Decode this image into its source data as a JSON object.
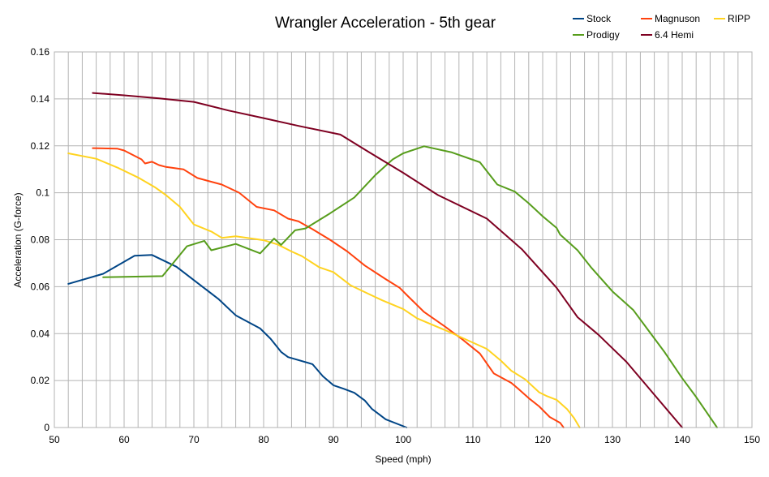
{
  "chart_data": {
    "type": "line",
    "title": "Wrangler Acceleration - 5th gear",
    "xlabel": "Speed (mph)",
    "ylabel": "Acceleration (G-force)",
    "xlim": [
      50,
      150
    ],
    "ylim": [
      0,
      0.16
    ],
    "x_ticks": [
      50,
      60,
      70,
      80,
      90,
      100,
      110,
      120,
      130,
      140,
      150
    ],
    "y_ticks": [
      0,
      0.02,
      0.04,
      0.06,
      0.08,
      0.1,
      0.12,
      0.14,
      0.16
    ],
    "x_tick_labels": [
      "50",
      "60",
      "70",
      "80",
      "90",
      "100",
      "110",
      "120",
      "130",
      "140",
      "150"
    ],
    "y_tick_labels": [
      "0",
      "0.02",
      "0.04",
      "0.06",
      "0.08",
      "0.1",
      "0.12",
      "0.14",
      "0.16"
    ],
    "grid": true,
    "legend_position": "top-right",
    "series": [
      {
        "name": "Stock",
        "color": "#004586",
        "points": [
          [
            52,
            0.0612
          ],
          [
            57,
            0.0655
          ],
          [
            61.5,
            0.0732
          ],
          [
            64,
            0.0735
          ],
          [
            67.5,
            0.0685
          ],
          [
            71,
            0.0605
          ],
          [
            73.5,
            0.0548
          ],
          [
            76,
            0.0478
          ],
          [
            79.5,
            0.0422
          ],
          [
            81,
            0.0378
          ],
          [
            82.5,
            0.0322
          ],
          [
            83.5,
            0.03
          ],
          [
            87,
            0.027
          ],
          [
            88.5,
            0.0218
          ],
          [
            90,
            0.018
          ],
          [
            91.5,
            0.0165
          ],
          [
            93,
            0.0148
          ],
          [
            94.5,
            0.0115
          ],
          [
            95.5,
            0.008
          ],
          [
            97.5,
            0.0035
          ],
          [
            100.5,
            0.0
          ]
        ]
      },
      {
        "name": "Magnuson",
        "color": "#ff420e",
        "points": [
          [
            55.5,
            0.119
          ],
          [
            59,
            0.1188
          ],
          [
            60,
            0.118
          ],
          [
            62.5,
            0.1142
          ],
          [
            63,
            0.1125
          ],
          [
            64,
            0.1132
          ],
          [
            65,
            0.1118
          ],
          [
            66,
            0.111
          ],
          [
            68.5,
            0.11
          ],
          [
            70.5,
            0.1063
          ],
          [
            74,
            0.1035
          ],
          [
            76.5,
            0.1
          ],
          [
            79,
            0.094
          ],
          [
            81.5,
            0.0925
          ],
          [
            83.5,
            0.089
          ],
          [
            85,
            0.0878
          ],
          [
            87,
            0.0845
          ],
          [
            89.5,
            0.08
          ],
          [
            92,
            0.075
          ],
          [
            94.5,
            0.069
          ],
          [
            97.5,
            0.0632
          ],
          [
            99.5,
            0.0595
          ],
          [
            100.5,
            0.0565
          ],
          [
            103,
            0.0492
          ],
          [
            106,
            0.043
          ],
          [
            108.5,
            0.0375
          ],
          [
            111,
            0.0315
          ],
          [
            113,
            0.023
          ],
          [
            115.5,
            0.019
          ],
          [
            116.5,
            0.0165
          ],
          [
            118,
            0.0125
          ],
          [
            119.5,
            0.009
          ],
          [
            121,
            0.0045
          ],
          [
            122.5,
            0.002
          ],
          [
            123,
            0.0
          ]
        ]
      },
      {
        "name": "RIPP",
        "color": "#ffd320",
        "points": [
          [
            52,
            0.1168
          ],
          [
            56,
            0.1145
          ],
          [
            59,
            0.1108
          ],
          [
            62,
            0.1065
          ],
          [
            64.5,
            0.1022
          ],
          [
            66,
            0.099
          ],
          [
            68,
            0.094
          ],
          [
            70,
            0.0865
          ],
          [
            72.5,
            0.0835
          ],
          [
            74,
            0.0808
          ],
          [
            76,
            0.0815
          ],
          [
            80,
            0.0798
          ],
          [
            82,
            0.078
          ],
          [
            84,
            0.075
          ],
          [
            85.5,
            0.073
          ],
          [
            88,
            0.0682
          ],
          [
            90,
            0.0662
          ],
          [
            92.5,
            0.0605
          ],
          [
            95,
            0.057
          ],
          [
            97,
            0.0542
          ],
          [
            100,
            0.0505
          ],
          [
            102,
            0.0465
          ],
          [
            106,
            0.0415
          ],
          [
            109,
            0.0375
          ],
          [
            112,
            0.0335
          ],
          [
            114,
            0.0285
          ],
          [
            115.5,
            0.0242
          ],
          [
            117.5,
            0.0205
          ],
          [
            119.5,
            0.015
          ],
          [
            120.5,
            0.0135
          ],
          [
            122,
            0.0118
          ],
          [
            123.5,
            0.0078
          ],
          [
            124.5,
            0.004
          ],
          [
            125.3,
            0.0
          ]
        ]
      },
      {
        "name": "Prodigy",
        "color": "#579d1c",
        "points": [
          [
            57,
            0.064
          ],
          [
            65.5,
            0.0645
          ],
          [
            69,
            0.0772
          ],
          [
            71.5,
            0.0795
          ],
          [
            72.5,
            0.0755
          ],
          [
            76,
            0.0782
          ],
          [
            79.5,
            0.0742
          ],
          [
            81.5,
            0.0805
          ],
          [
            82.5,
            0.0778
          ],
          [
            84.5,
            0.084
          ],
          [
            86,
            0.0848
          ],
          [
            89.5,
            0.0912
          ],
          [
            93,
            0.098
          ],
          [
            96,
            0.1075
          ],
          [
            98.5,
            0.1142
          ],
          [
            100,
            0.1168
          ],
          [
            103,
            0.1198
          ],
          [
            107,
            0.1172
          ],
          [
            111,
            0.113
          ],
          [
            113.5,
            0.1035
          ],
          [
            116,
            0.1005
          ],
          [
            118,
            0.0955
          ],
          [
            120,
            0.09
          ],
          [
            122,
            0.085
          ],
          [
            122.5,
            0.0822
          ],
          [
            125,
            0.0755
          ],
          [
            127,
            0.068
          ],
          [
            130,
            0.058
          ],
          [
            133,
            0.05
          ],
          [
            135,
            0.042
          ],
          [
            137.5,
            0.032
          ],
          [
            140,
            0.021
          ],
          [
            142,
            0.013
          ],
          [
            145,
            0.0
          ]
        ]
      },
      {
        "name": "6.4 Hemi",
        "color": "#7e0021",
        "points": [
          [
            55.5,
            0.1425
          ],
          [
            60,
            0.1415
          ],
          [
            65,
            0.1402
          ],
          [
            70,
            0.1387
          ],
          [
            75,
            0.135
          ],
          [
            80,
            0.1318
          ],
          [
            85,
            0.1285
          ],
          [
            91,
            0.1248
          ],
          [
            95,
            0.1175
          ],
          [
            100,
            0.1085
          ],
          [
            105,
            0.099
          ],
          [
            112,
            0.089
          ],
          [
            117,
            0.076
          ],
          [
            122,
            0.0595
          ],
          [
            125,
            0.047
          ],
          [
            128,
            0.0395
          ],
          [
            132,
            0.028
          ],
          [
            136,
            0.014
          ],
          [
            140,
            0.0
          ]
        ]
      }
    ]
  }
}
